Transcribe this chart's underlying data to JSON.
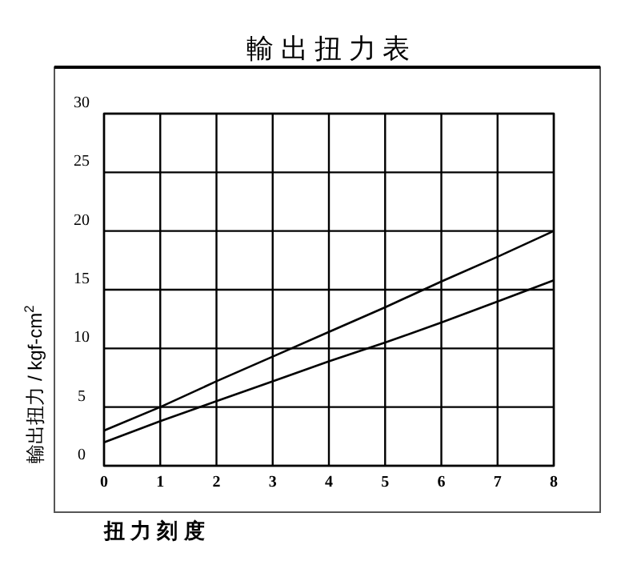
{
  "chart_data": {
    "type": "line",
    "title": "輸 出 扭 力 表",
    "xlabel": "扭 力 刻 度",
    "ylabel": "輸出扭力 / kgf-cm$^{2}$",
    "x": [
      0,
      1,
      2,
      3,
      4,
      5,
      6,
      7,
      8
    ],
    "series": [
      {
        "color": "#000000",
        "values": [
          3,
          5,
          7.2,
          9.3,
          11.4,
          13.5,
          15.7,
          17.8,
          20
        ]
      },
      {
        "color": "#000000",
        "values": [
          2,
          3.8,
          5.5,
          7.2,
          8.9,
          10.5,
          12.2,
          14,
          15.8
        ]
      }
    ],
    "xlim": [
      0,
      8
    ],
    "xticks": [
      0,
      1,
      2,
      3,
      4,
      5,
      6,
      7,
      8
    ],
    "ylim": [
      0,
      30
    ],
    "yticks": [
      0,
      5,
      10,
      15,
      20,
      25,
      30
    ],
    "grid": true,
    "marker": "none",
    "line_style": "solid"
  }
}
